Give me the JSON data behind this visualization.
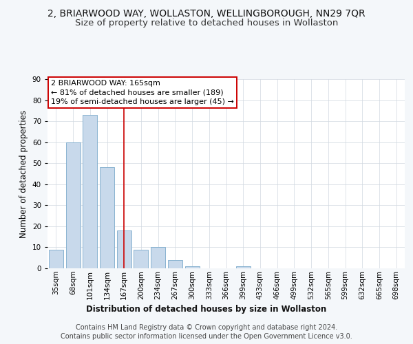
{
  "title": "2, BRIARWOOD WAY, WOLLASTON, WELLINGBOROUGH, NN29 7QR",
  "subtitle": "Size of property relative to detached houses in Wollaston",
  "xlabel": "Distribution of detached houses by size in Wollaston",
  "ylabel": "Number of detached properties",
  "categories": [
    "35sqm",
    "68sqm",
    "101sqm",
    "134sqm",
    "167sqm",
    "200sqm",
    "234sqm",
    "267sqm",
    "300sqm",
    "333sqm",
    "366sqm",
    "399sqm",
    "433sqm",
    "466sqm",
    "499sqm",
    "532sqm",
    "565sqm",
    "599sqm",
    "632sqm",
    "665sqm",
    "698sqm"
  ],
  "values": [
    9,
    60,
    73,
    48,
    18,
    9,
    10,
    4,
    1,
    0,
    0,
    1,
    0,
    0,
    0,
    0,
    0,
    0,
    0,
    0,
    0
  ],
  "bar_color": "#c8d9eb",
  "bar_edge_color": "#7aaacb",
  "highlight_index": 4,
  "red_line_color": "#cc0000",
  "annotation_line1": "2 BRIARWOOD WAY: 165sqm",
  "annotation_line2": "← 81% of detached houses are smaller (189)",
  "annotation_line3": "19% of semi-detached houses are larger (45) →",
  "annotation_box_color": "#ffffff",
  "annotation_box_edge_color": "#cc0000",
  "ylim": [
    0,
    90
  ],
  "yticks": [
    0,
    10,
    20,
    30,
    40,
    50,
    60,
    70,
    80,
    90
  ],
  "footer_line1": "Contains HM Land Registry data © Crown copyright and database right 2024.",
  "footer_line2": "Contains public sector information licensed under the Open Government Licence v3.0.",
  "title_fontsize": 10,
  "subtitle_fontsize": 9.5,
  "axis_label_fontsize": 8.5,
  "tick_fontsize": 7.5,
  "annotation_fontsize": 8,
  "footer_fontsize": 7,
  "bg_color": "#f4f7fa",
  "plot_bg_color": "#ffffff",
  "grid_color": "#d0d8e0"
}
